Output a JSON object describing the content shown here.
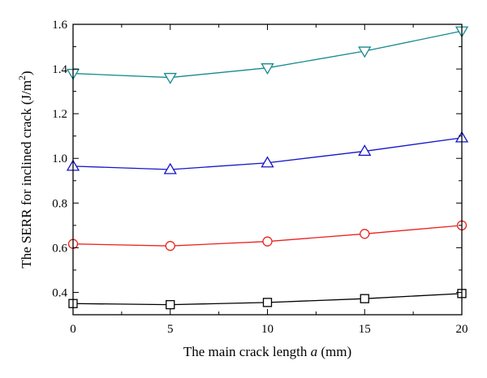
{
  "chart_data": {
    "type": "line",
    "x": [
      0,
      5,
      10,
      15,
      20
    ],
    "xlim": [
      0,
      20
    ],
    "ylim": [
      0.3,
      1.6
    ],
    "x_ticks": [
      0,
      5,
      10,
      15,
      20
    ],
    "y_ticks": [
      0.4,
      0.6,
      0.8,
      1.0,
      1.2,
      1.4,
      1.6
    ],
    "x_tick_labels": [
      "0",
      "5",
      "10",
      "15",
      "20"
    ],
    "y_tick_labels": [
      "0.4",
      "0.6",
      "0.8",
      "1.0",
      "1.2",
      "1.4",
      "1.6"
    ],
    "xlabel": {
      "text": "The main crack length ",
      "var": "a",
      "unit": " (mm)"
    },
    "ylabel": {
      "text": "The SERR for inclined crack (J/m",
      "sup": "2",
      "close": ")"
    },
    "grid": false,
    "series": [
      {
        "marker": "square",
        "color": "#000000",
        "values": [
          0.35,
          0.345,
          0.355,
          0.372,
          0.395
        ]
      },
      {
        "marker": "circle",
        "color": "#e8231f",
        "values": [
          0.617,
          0.608,
          0.628,
          0.662,
          0.7
        ]
      },
      {
        "marker": "triangle-up",
        "color": "#1515c8",
        "values": [
          0.965,
          0.95,
          0.98,
          1.032,
          1.092
        ]
      },
      {
        "marker": "triangle-down",
        "color": "#16898d",
        "values": [
          1.38,
          1.362,
          1.405,
          1.48,
          1.57
        ]
      }
    ]
  }
}
